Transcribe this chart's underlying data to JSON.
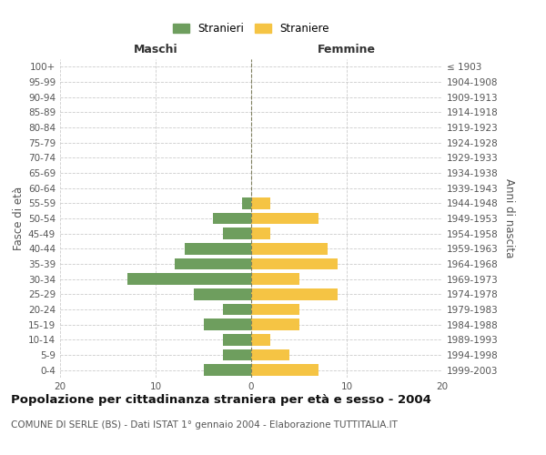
{
  "age_groups": [
    "0-4",
    "5-9",
    "10-14",
    "15-19",
    "20-24",
    "25-29",
    "30-34",
    "35-39",
    "40-44",
    "45-49",
    "50-54",
    "55-59",
    "60-64",
    "65-69",
    "70-74",
    "75-79",
    "80-84",
    "85-89",
    "90-94",
    "95-99",
    "100+"
  ],
  "birth_years": [
    "1999-2003",
    "1994-1998",
    "1989-1993",
    "1984-1988",
    "1979-1983",
    "1974-1978",
    "1969-1973",
    "1964-1968",
    "1959-1963",
    "1954-1958",
    "1949-1953",
    "1944-1948",
    "1939-1943",
    "1934-1938",
    "1929-1933",
    "1924-1928",
    "1919-1923",
    "1914-1918",
    "1909-1913",
    "1904-1908",
    "≤ 1903"
  ],
  "maschi": [
    5,
    3,
    3,
    5,
    3,
    6,
    13,
    8,
    7,
    3,
    4,
    1,
    0,
    0,
    0,
    0,
    0,
    0,
    0,
    0,
    0
  ],
  "femmine": [
    7,
    4,
    2,
    5,
    5,
    9,
    5,
    9,
    8,
    2,
    7,
    2,
    0,
    0,
    0,
    0,
    0,
    0,
    0,
    0,
    0
  ],
  "maschi_color": "#6e9e5e",
  "femmine_color": "#f5c444",
  "bar_height": 0.75,
  "xlim": 20,
  "title": "Popolazione per cittadinanza straniera per età e sesso - 2004",
  "subtitle": "COMUNE DI SERLE (BS) - Dati ISTAT 1° gennaio 2004 - Elaborazione TUTTITALIA.IT",
  "ylabel_left": "Fasce di età",
  "ylabel_right": "Anni di nascita",
  "legend_maschi": "Stranieri",
  "legend_femmine": "Straniere",
  "maschi_label": "Maschi",
  "femmine_label": "Femmine",
  "background_color": "#ffffff",
  "grid_color": "#cccccc",
  "center_line_color": "#808060",
  "axis_tick_fontsize": 7.5,
  "title_fontsize": 9.5,
  "subtitle_fontsize": 7.5,
  "label_fontsize": 8.5
}
